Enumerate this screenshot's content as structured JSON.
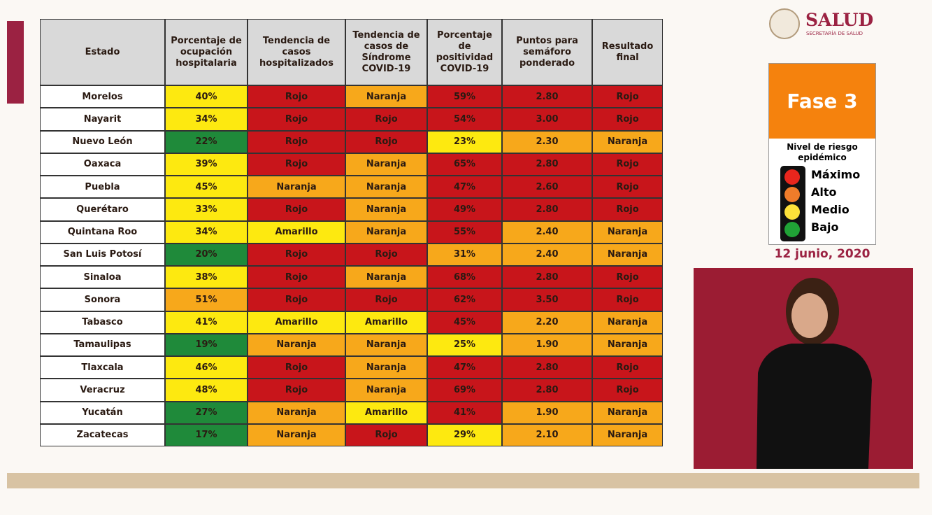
{
  "header": {
    "brand": "SALUD",
    "brand_sub": "SECRETARÍA DE SALUD"
  },
  "table": {
    "columns": [
      "Estado",
      "Porcentaje de ocupación hospitalaria",
      "Tendencia de casos hospitalizados",
      "Tendencia de casos de Síndrome COVID-19",
      "Porcentaje de positividad COVID-19",
      "Puntos para semáforo ponderado",
      "Resultado final"
    ],
    "rows": [
      [
        "Morelos",
        "40%",
        "Rojo",
        "Naranja",
        "59%",
        "2.80",
        "Rojo"
      ],
      [
        "Nayarit",
        "34%",
        "Rojo",
        "Rojo",
        "54%",
        "3.00",
        "Rojo"
      ],
      [
        "Nuevo León",
        "22%",
        "Rojo",
        "Rojo",
        "23%",
        "2.30",
        "Naranja"
      ],
      [
        "Oaxaca",
        "39%",
        "Rojo",
        "Naranja",
        "65%",
        "2.80",
        "Rojo"
      ],
      [
        "Puebla",
        "45%",
        "Naranja",
        "Naranja",
        "47%",
        "2.60",
        "Rojo"
      ],
      [
        "Querétaro",
        "33%",
        "Rojo",
        "Naranja",
        "49%",
        "2.80",
        "Rojo"
      ],
      [
        "Quintana Roo",
        "34%",
        "Amarillo",
        "Naranja",
        "55%",
        "2.40",
        "Naranja"
      ],
      [
        "San Luis Potosí",
        "20%",
        "Rojo",
        "Rojo",
        "31%",
        "2.40",
        "Naranja"
      ],
      [
        "Sinaloa",
        "38%",
        "Rojo",
        "Naranja",
        "68%",
        "2.80",
        "Rojo"
      ],
      [
        "Sonora",
        "51%",
        "Rojo",
        "Rojo",
        "62%",
        "3.50",
        "Rojo"
      ],
      [
        "Tabasco",
        "41%",
        "Amarillo",
        "Amarillo",
        "45%",
        "2.20",
        "Naranja"
      ],
      [
        "Tamaulipas",
        "19%",
        "Naranja",
        "Naranja",
        "25%",
        "1.90",
        "Naranja"
      ],
      [
        "Tlaxcala",
        "46%",
        "Rojo",
        "Naranja",
        "47%",
        "2.80",
        "Rojo"
      ],
      [
        "Veracruz",
        "48%",
        "Rojo",
        "Naranja",
        "69%",
        "2.80",
        "Rojo"
      ],
      [
        "Yucatán",
        "27%",
        "Naranja",
        "Amarillo",
        "41%",
        "1.90",
        "Naranja"
      ],
      [
        "Zacatecas",
        "17%",
        "Naranja",
        "Rojo",
        "29%",
        "2.10",
        "Naranja"
      ]
    ],
    "colors": [
      [
        "#ffffff",
        "#fde910",
        "#c8151b",
        "#f7a81b",
        "#c8151b",
        "#c8151b",
        "#c8151b"
      ],
      [
        "#ffffff",
        "#fde910",
        "#c8151b",
        "#c8151b",
        "#c8151b",
        "#c8151b",
        "#c8151b"
      ],
      [
        "#ffffff",
        "#1f8a3a",
        "#c8151b",
        "#c8151b",
        "#fde910",
        "#f7a81b",
        "#f7a81b"
      ],
      [
        "#ffffff",
        "#fde910",
        "#c8151b",
        "#f7a81b",
        "#c8151b",
        "#c8151b",
        "#c8151b"
      ],
      [
        "#ffffff",
        "#fde910",
        "#f7a81b",
        "#f7a81b",
        "#c8151b",
        "#c8151b",
        "#c8151b"
      ],
      [
        "#ffffff",
        "#fde910",
        "#c8151b",
        "#f7a81b",
        "#c8151b",
        "#c8151b",
        "#c8151b"
      ],
      [
        "#ffffff",
        "#fde910",
        "#fde910",
        "#f7a81b",
        "#c8151b",
        "#f7a81b",
        "#f7a81b"
      ],
      [
        "#ffffff",
        "#1f8a3a",
        "#c8151b",
        "#c8151b",
        "#f7a81b",
        "#f7a81b",
        "#f7a81b"
      ],
      [
        "#ffffff",
        "#fde910",
        "#c8151b",
        "#f7a81b",
        "#c8151b",
        "#c8151b",
        "#c8151b"
      ],
      [
        "#ffffff",
        "#f7a81b",
        "#c8151b",
        "#c8151b",
        "#c8151b",
        "#c8151b",
        "#c8151b"
      ],
      [
        "#ffffff",
        "#fde910",
        "#fde910",
        "#fde910",
        "#c8151b",
        "#f7a81b",
        "#f7a81b"
      ],
      [
        "#ffffff",
        "#1f8a3a",
        "#f7a81b",
        "#f7a81b",
        "#fde910",
        "#f7a81b",
        "#f7a81b"
      ],
      [
        "#ffffff",
        "#fde910",
        "#c8151b",
        "#f7a81b",
        "#c8151b",
        "#c8151b",
        "#c8151b"
      ],
      [
        "#ffffff",
        "#fde910",
        "#c8151b",
        "#f7a81b",
        "#c8151b",
        "#c8151b",
        "#c8151b"
      ],
      [
        "#ffffff",
        "#1f8a3a",
        "#f7a81b",
        "#fde910",
        "#c8151b",
        "#f7a81b",
        "#f7a81b"
      ],
      [
        "#ffffff",
        "#1f8a3a",
        "#f7a81b",
        "#c8151b",
        "#fde910",
        "#f7a81b",
        "#f7a81b"
      ]
    ]
  },
  "phase": {
    "title": "Fase 3",
    "subtitle": "Nivel de riesgo epidémico",
    "levels": [
      {
        "label": "Máximo",
        "color": "#e8261d"
      },
      {
        "label": "Alto",
        "color": "#f07c2a"
      },
      {
        "label": "Medio",
        "color": "#fde23a"
      },
      {
        "label": "Bajo",
        "color": "#20a236"
      }
    ],
    "date": "12 junio, 2020"
  }
}
